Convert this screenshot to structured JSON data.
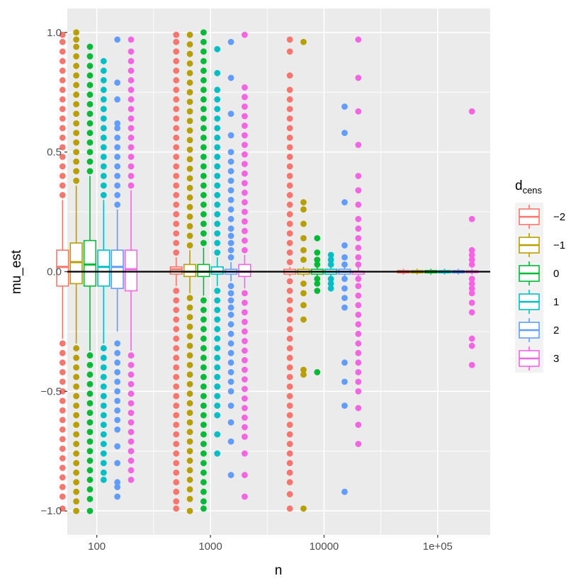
{
  "chart_data": {
    "type": "boxplot",
    "xlabel": "n",
    "ylabel": "mu_est",
    "x_scale": "log10",
    "x_ticks": [
      {
        "value": 100,
        "label": "100"
      },
      {
        "value": 1000,
        "label": "1000"
      },
      {
        "value": 10000,
        "label": "10000"
      },
      {
        "value": 100000,
        "label": "1e+05"
      }
    ],
    "y_ticks": [
      {
        "value": 1.0,
        "label": "1.0"
      },
      {
        "value": 0.5,
        "label": "0.5"
      },
      {
        "value": 0.0,
        "label": "0.0"
      },
      {
        "value": -0.5,
        "label": "−0.5"
      },
      {
        "value": -1.0,
        "label": "−1.0"
      }
    ],
    "ylim": [
      -1.1,
      1.1
    ],
    "reference_line_y": 0,
    "legend": {
      "title_main": "d",
      "title_sub": "cens",
      "entries": [
        {
          "label": "−2",
          "color": "#F8766D"
        },
        {
          "label": "−1",
          "color": "#B79F00"
        },
        {
          "label": "0",
          "color": "#00BA38"
        },
        {
          "label": "1",
          "color": "#00BFC4"
        },
        {
          "label": "2",
          "color": "#619CFF"
        },
        {
          "label": "3",
          "color": "#F564E3"
        }
      ]
    },
    "groups": [
      {
        "n": 100,
        "boxes": [
          {
            "dcens": "-2",
            "q1": -0.06,
            "median": 0.02,
            "q3": 0.09,
            "whisker_low": -0.28,
            "whisker_high": 0.3,
            "out_high": [
              0.32,
              0.36,
              0.4,
              0.44,
              0.48,
              0.52,
              0.56,
              0.6,
              0.64,
              0.68,
              0.72,
              0.76,
              0.8,
              0.84,
              0.88,
              0.92,
              0.96,
              0.99
            ],
            "out_low": [
              -0.3,
              -0.34,
              -0.38,
              -0.42,
              -0.46,
              -0.5,
              -0.54,
              -0.58,
              -0.62,
              -0.66,
              -0.7,
              -0.74,
              -0.78,
              -0.82,
              -0.86,
              -0.9,
              -0.94,
              -0.99
            ]
          },
          {
            "dcens": "-1",
            "q1": -0.05,
            "median": 0.04,
            "q3": 0.12,
            "whisker_low": -0.3,
            "whisker_high": 0.36,
            "out_high": [
              0.38,
              0.42,
              0.46,
              0.5,
              0.54,
              0.58,
              0.62,
              0.66,
              0.7,
              0.74,
              0.78,
              0.82,
              0.86,
              0.9,
              0.94,
              0.97,
              1.0
            ],
            "out_low": [
              -0.32,
              -0.36,
              -0.4,
              -0.44,
              -0.48,
              -0.52,
              -0.56,
              -0.6,
              -0.64,
              -0.68,
              -0.72,
              -0.76,
              -0.8,
              -0.84,
              -0.88,
              -0.92,
              -0.96,
              -1.0
            ]
          },
          {
            "dcens": "0",
            "q1": -0.06,
            "median": 0.03,
            "q3": 0.13,
            "whisker_low": -0.33,
            "whisker_high": 0.4,
            "out_high": [
              0.42,
              0.46,
              0.5,
              0.54,
              0.58,
              0.62,
              0.66,
              0.7,
              0.74,
              0.78,
              0.82,
              0.86,
              0.9,
              0.94
            ],
            "out_low": [
              -0.35,
              -0.39,
              -0.43,
              -0.47,
              -0.51,
              -0.55,
              -0.59,
              -0.63,
              -0.67,
              -0.71,
              -0.75,
              -0.79,
              -0.83,
              -0.87,
              -0.91,
              -0.95,
              -1.0
            ]
          },
          {
            "dcens": "1",
            "q1": -0.06,
            "median": 0.02,
            "q3": 0.09,
            "whisker_low": -0.3,
            "whisker_high": 0.3,
            "out_high": [
              0.32,
              0.36,
              0.4,
              0.44,
              0.48,
              0.52,
              0.56,
              0.6,
              0.64,
              0.68,
              0.72,
              0.76,
              0.8,
              0.84,
              0.88
            ],
            "out_low": [
              -0.32,
              -0.36,
              -0.4,
              -0.44,
              -0.48,
              -0.52,
              -0.56,
              -0.6,
              -0.64,
              -0.68,
              -0.72,
              -0.76,
              -0.8,
              -0.84,
              -0.87
            ]
          },
          {
            "dcens": "2",
            "q1": -0.07,
            "median": 0.02,
            "q3": 0.09,
            "whisker_low": -0.25,
            "whisker_high": 0.26,
            "out_high": [
              0.28,
              0.32,
              0.36,
              0.4,
              0.44,
              0.48,
              0.52,
              0.56,
              0.6,
              0.62,
              0.72,
              0.79,
              0.97
            ],
            "out_low": [
              -0.3,
              -0.34,
              -0.38,
              -0.42,
              -0.46,
              -0.5,
              -0.54,
              -0.58,
              -0.62,
              -0.66,
              -0.73,
              -0.8,
              -0.88,
              -0.9,
              -0.94
            ]
          },
          {
            "dcens": "3",
            "q1": -0.08,
            "median": 0.01,
            "q3": 0.09,
            "whisker_low": -0.33,
            "whisker_high": 0.34,
            "out_high": [
              0.36,
              0.4,
              0.44,
              0.48,
              0.52,
              0.56,
              0.6,
              0.64,
              0.68,
              0.72,
              0.76,
              0.8,
              0.84,
              0.88,
              0.92,
              0.97
            ],
            "out_low": [
              -0.35,
              -0.39,
              -0.43,
              -0.47,
              -0.51,
              -0.55,
              -0.59,
              -0.63,
              -0.67,
              -0.71,
              -0.75,
              -0.79,
              -0.83,
              -0.87
            ]
          }
        ]
      },
      {
        "n": 1000,
        "boxes": [
          {
            "dcens": "-2",
            "q1": -0.01,
            "median": 0.01,
            "q3": 0.02,
            "whisker_low": -0.06,
            "whisker_high": 0.06,
            "out_high": [
              0.08,
              0.12,
              0.16,
              0.2,
              0.24,
              0.28,
              0.32,
              0.36,
              0.4,
              0.44,
              0.48,
              0.52,
              0.56,
              0.6,
              0.64,
              0.68,
              0.72,
              0.76,
              0.8,
              0.84,
              0.88,
              0.92,
              0.96,
              0.99
            ],
            "out_low": [
              -0.08,
              -0.12,
              -0.16,
              -0.2,
              -0.24,
              -0.28,
              -0.32,
              -0.36,
              -0.4,
              -0.44,
              -0.48,
              -0.52,
              -0.56,
              -0.6,
              -0.64,
              -0.68,
              -0.72,
              -0.76,
              -0.8,
              -0.84,
              -0.88,
              -0.92,
              -0.96,
              -0.99
            ]
          },
          {
            "dcens": "-1",
            "q1": -0.02,
            "median": 0.0,
            "q3": 0.03,
            "whisker_low": -0.09,
            "whisker_high": 0.09,
            "out_high": [
              0.11,
              0.15,
              0.19,
              0.23,
              0.27,
              0.31,
              0.35,
              0.39,
              0.43,
              0.47,
              0.51,
              0.55,
              0.59,
              0.63,
              0.67,
              0.71,
              0.75,
              0.79,
              0.83,
              0.87,
              0.91,
              0.95,
              0.99
            ],
            "out_low": [
              -0.11,
              -0.15,
              -0.19,
              -0.23,
              -0.27,
              -0.31,
              -0.35,
              -0.39,
              -0.43,
              -0.47,
              -0.51,
              -0.55,
              -0.59,
              -0.63,
              -0.67,
              -0.71,
              -0.75,
              -0.79,
              -0.83,
              -0.87,
              -0.91,
              -0.95,
              -1.0
            ]
          },
          {
            "dcens": "0",
            "q1": -0.02,
            "median": 0.0,
            "q3": 0.03,
            "whisker_low": -0.1,
            "whisker_high": 0.1,
            "out_high": [
              0.12,
              0.16,
              0.2,
              0.24,
              0.28,
              0.32,
              0.36,
              0.4,
              0.44,
              0.48,
              0.52,
              0.56,
              0.6,
              0.64,
              0.68,
              0.72,
              0.76,
              0.8,
              0.84,
              0.88,
              0.92,
              0.96,
              1.0
            ],
            "out_low": [
              -0.12,
              -0.16,
              -0.2,
              -0.24,
              -0.28,
              -0.32,
              -0.36,
              -0.4,
              -0.44,
              -0.48,
              -0.52,
              -0.56,
              -0.6,
              -0.64,
              -0.68,
              -0.72,
              -0.76,
              -0.8,
              -0.84,
              -0.88,
              -0.92,
              -0.96,
              -0.99
            ]
          },
          {
            "dcens": "1",
            "q1": -0.01,
            "median": 0.0,
            "q3": 0.02,
            "whisker_low": -0.06,
            "whisker_high": 0.06,
            "out_high": [
              0.08,
              0.12,
              0.16,
              0.2,
              0.24,
              0.28,
              0.32,
              0.36,
              0.4,
              0.44,
              0.48,
              0.52,
              0.56,
              0.6,
              0.64,
              0.68,
              0.72,
              0.76,
              0.83,
              0.93
            ],
            "out_low": [
              -0.08,
              -0.12,
              -0.16,
              -0.2,
              -0.24,
              -0.28,
              -0.32,
              -0.36,
              -0.4,
              -0.44,
              -0.48,
              -0.52,
              -0.56,
              -0.6,
              -0.68,
              -0.76
            ]
          },
          {
            "dcens": "2",
            "q1": -0.01,
            "median": 0.0,
            "q3": 0.01,
            "whisker_low": -0.04,
            "whisker_high": 0.04,
            "out_high": [
              0.06,
              0.09,
              0.12,
              0.15,
              0.18,
              0.22,
              0.26,
              0.3,
              0.34,
              0.38,
              0.42,
              0.46,
              0.5,
              0.57,
              0.66,
              0.81,
              0.96
            ],
            "out_low": [
              -0.06,
              -0.09,
              -0.12,
              -0.15,
              -0.18,
              -0.22,
              -0.26,
              -0.3,
              -0.34,
              -0.38,
              -0.42,
              -0.46,
              -0.5,
              -0.56,
              -0.63,
              -0.71,
              -0.85
            ]
          },
          {
            "dcens": "3",
            "q1": -0.02,
            "median": 0.0,
            "q3": 0.03,
            "whisker_low": -0.07,
            "whisker_high": 0.07,
            "out_high": [
              0.09,
              0.13,
              0.17,
              0.21,
              0.25,
              0.29,
              0.33,
              0.37,
              0.41,
              0.45,
              0.49,
              0.53,
              0.57,
              0.61,
              0.65,
              0.69,
              0.73,
              0.77,
              0.99
            ],
            "out_low": [
              -0.09,
              -0.13,
              -0.17,
              -0.21,
              -0.25,
              -0.29,
              -0.33,
              -0.37,
              -0.41,
              -0.45,
              -0.49,
              -0.53,
              -0.57,
              -0.61,
              -0.65,
              -0.69,
              -0.76,
              -0.85,
              -0.94
            ]
          }
        ]
      },
      {
        "n": 10000,
        "boxes": [
          {
            "dcens": "-2",
            "q1": -0.01,
            "median": 0.0,
            "q3": 0.01,
            "whisker_low": -0.02,
            "whisker_high": 0.02,
            "out_high": [
              0.04,
              0.08,
              0.12,
              0.16,
              0.2,
              0.24,
              0.28,
              0.32,
              0.36,
              0.4,
              0.44,
              0.48,
              0.52,
              0.56,
              0.6,
              0.64,
              0.68,
              0.72,
              0.76,
              0.82,
              0.92,
              0.97
            ],
            "out_low": [
              -0.04,
              -0.08,
              -0.12,
              -0.16,
              -0.2,
              -0.24,
              -0.28,
              -0.32,
              -0.36,
              -0.4,
              -0.44,
              -0.48,
              -0.52,
              -0.56,
              -0.6,
              -0.64,
              -0.68,
              -0.72,
              -0.76,
              -0.8,
              -0.84,
              -0.88,
              -0.93,
              -0.99
            ]
          },
          {
            "dcens": "-1",
            "q1": -0.01,
            "median": 0.0,
            "q3": 0.01,
            "whisker_low": -0.02,
            "whisker_high": 0.02,
            "out_high": [
              0.05,
              0.09,
              0.14,
              0.2,
              0.26,
              0.29,
              0.96
            ],
            "out_low": [
              -0.05,
              -0.09,
              -0.14,
              -0.2,
              -0.41,
              -0.43,
              -0.99
            ]
          },
          {
            "dcens": "0",
            "q1": -0.01,
            "median": 0.0,
            "q3": 0.01,
            "whisker_low": -0.02,
            "whisker_high": 0.02,
            "out_high": [
              0.03,
              0.05,
              0.08,
              0.14
            ],
            "out_low": [
              -0.03,
              -0.05,
              -0.08,
              -0.42
            ]
          },
          {
            "dcens": "1",
            "q1": -0.01,
            "median": 0.0,
            "q3": 0.01,
            "whisker_low": -0.02,
            "whisker_high": 0.02,
            "out_high": [
              0.03,
              0.05,
              0.07
            ],
            "out_low": [
              -0.03,
              -0.05,
              -0.07
            ]
          },
          {
            "dcens": "2",
            "q1": -0.01,
            "median": 0.0,
            "q3": 0.01,
            "whisker_low": -0.02,
            "whisker_high": 0.02,
            "out_high": [
              0.03,
              0.06,
              0.11,
              0.29,
              0.58,
              0.69
            ],
            "out_low": [
              -0.03,
              -0.07,
              -0.11,
              -0.15,
              -0.38,
              -0.46,
              -0.56,
              -0.92
            ]
          },
          {
            "dcens": "3",
            "q1": -0.01,
            "median": 0.0,
            "q3": 0.0,
            "whisker_low": -0.02,
            "whisker_high": 0.02,
            "out_high": [
              0.03,
              0.06,
              0.1,
              0.14,
              0.18,
              0.22,
              0.28,
              0.34,
              0.4,
              0.53,
              0.67,
              0.81,
              0.97
            ],
            "out_low": [
              -0.03,
              -0.06,
              -0.1,
              -0.14,
              -0.18,
              -0.22,
              -0.26,
              -0.3,
              -0.34,
              -0.38,
              -0.42,
              -0.46,
              -0.5,
              -0.57,
              -0.64,
              -0.72
            ]
          }
        ]
      },
      {
        "n": 100000,
        "boxes": [
          {
            "dcens": "-2",
            "q1": -0.005,
            "median": 0.0,
            "q3": 0.005,
            "whisker_low": -0.012,
            "whisker_high": 0.012,
            "out_high": [],
            "out_low": []
          },
          {
            "dcens": "-1",
            "q1": -0.005,
            "median": 0.0,
            "q3": 0.005,
            "whisker_low": -0.012,
            "whisker_high": 0.012,
            "out_high": [],
            "out_low": []
          },
          {
            "dcens": "0",
            "q1": -0.005,
            "median": 0.0,
            "q3": 0.005,
            "whisker_low": -0.012,
            "whisker_high": 0.012,
            "out_high": [],
            "out_low": []
          },
          {
            "dcens": "1",
            "q1": -0.005,
            "median": 0.0,
            "q3": 0.005,
            "whisker_low": -0.012,
            "whisker_high": 0.012,
            "out_high": [],
            "out_low": []
          },
          {
            "dcens": "2",
            "q1": -0.005,
            "median": 0.0,
            "q3": 0.005,
            "whisker_low": -0.012,
            "whisker_high": 0.012,
            "out_high": [],
            "out_low": []
          },
          {
            "dcens": "3",
            "q1": -0.004,
            "median": 0.0,
            "q3": 0.004,
            "whisker_low": -0.012,
            "whisker_high": 0.012,
            "out_high": [
              0.03,
              0.05,
              0.07,
              0.09,
              0.22,
              0.67
            ],
            "out_low": [
              -0.03,
              -0.05,
              -0.07,
              -0.09,
              -0.13,
              -0.17,
              -0.28,
              -0.31,
              -0.39
            ]
          }
        ]
      }
    ]
  }
}
